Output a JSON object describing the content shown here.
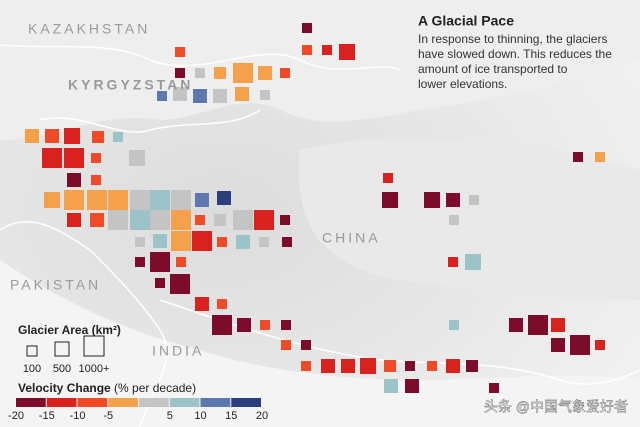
{
  "title": "A Glacial Pace",
  "body_lines": [
    "In response to thinning, the glaciers",
    "have slowed down. This reduces the",
    "amount of ice transported to",
    "lower elevations."
  ],
  "places": [
    "KAZAKHSTAN",
    "KYRGYZSTAN",
    "CHINA",
    "PAKISTAN",
    "INDIA"
  ],
  "legend": {
    "area_title": "Glacier Area (km²)",
    "area_ticks": [
      100,
      500,
      {
        "value": 1000,
        "label": "1000+"
      }
    ],
    "velocity_title": "Velocity Change",
    "velocity_unit": "(% per decade)",
    "velocity_lim": [
      -20,
      20
    ],
    "velocity_ticks": [
      -20,
      -15,
      -10,
      -5,
      5,
      10,
      15,
      20
    ],
    "colors": [
      "#7d0c2a",
      "#d9211e",
      "#f04a26",
      "#f5a04a",
      "#c4c4c4",
      "#9cc3c8",
      "#5b79ad",
      "#2b3f7f"
    ]
  },
  "watermark": "头条 @中国气象爱好者"
}
